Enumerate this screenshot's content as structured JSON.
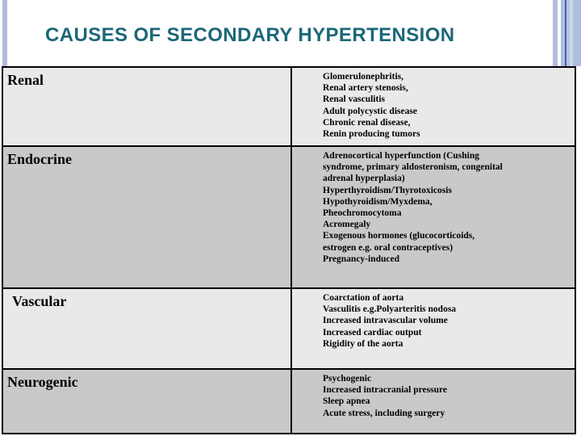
{
  "slide": {
    "title": "CAUSES OF SECONDARY HYPERTENSION"
  },
  "colors": {
    "title_teal": "#1b6778",
    "row_light": "#e9e9e9",
    "row_dark": "#c9c9c9",
    "table_border": "#000000",
    "accent_bar_blue": "#aebcda",
    "stripe_line_navy": "#3c64aa"
  },
  "table": {
    "rows": [
      {
        "category": "Renal",
        "lines": [
          "Glomerulonephritis,",
          "Renal artery stenosis,",
          "Renal vasculitis",
          "Adult polycystic disease",
          "Chronic renal disease,",
          "Renin producing tumors"
        ]
      },
      {
        "category": "Endocrine",
        "lines": [
          "Adrenocortical hyperfunction (Cushing",
          "syndrome, primary aldosteronism, congenital",
          "adrenal hyperplasia)",
          "Hyperthyroidism/Thyrotoxicosis",
          "Hypothyroidism/Myxdema,",
          "Pheochromocytoma",
          "Acromegaly",
          "Exogenous hormones (glucocorticoids,",
          "estrogen e.g. oral contraceptives)",
          "Pregnancy-induced"
        ]
      },
      {
        "category": "Vascular",
        "lines": [
          "Coarctation of aorta",
          "Vasculitis e.g.Polyarteritis nodosa",
          "Increased intravascular volume",
          "Increased cardiac output",
          "Rigidity of the aorta"
        ]
      },
      {
        "category": "Neurogenic",
        "lines": [
          "Psychogenic",
          "Increased intracranial pressure",
          "Sleep apnea",
          "Acute stress, including surgery"
        ]
      }
    ]
  }
}
